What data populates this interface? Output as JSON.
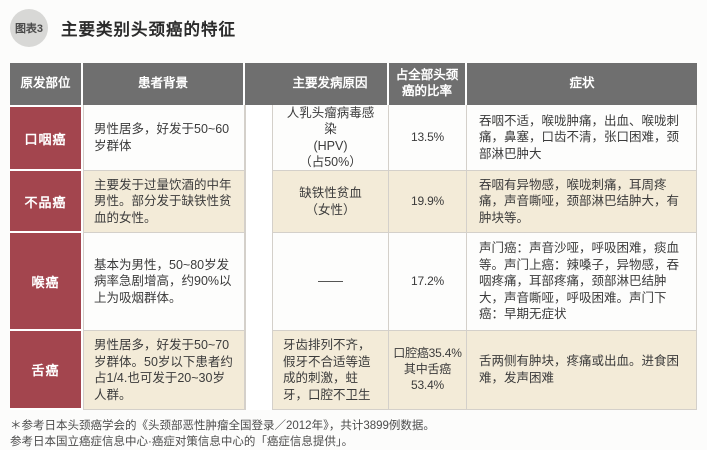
{
  "title": {
    "badge": "图表3",
    "text": "主要类别头颈癌的特征"
  },
  "chart_data": {
    "type": "table",
    "title": "主要类别头颈癌的特征",
    "columns": [
      "原发部位",
      "患者背景",
      "主要发病原因",
      "占全部头颈癌的比率",
      "症状"
    ],
    "rows": [
      {
        "site": "口咽癌",
        "background": "男性居多，好发于50~60岁群体",
        "cause": "人乳头瘤病毒感染\n(HPV)\n（占50%）",
        "ratio": "13.5%",
        "symptoms": "吞咽不适，喉咙肿痛，出血、喉咙刺痛，鼻塞，口齿不清，张口困难，颈部淋巴肿大"
      },
      {
        "site": "不品癌",
        "background": "主要发于过量饮酒的中年男性。部分发于缺铁性贫血的女性。",
        "cause": "缺铁性贫血\n（女性）",
        "ratio": "19.9%",
        "symptoms": "吞咽有异物感，喉咙刺痛，耳周疼痛，声音嘶哑，颈部淋巴结肿大，有肿块等。"
      },
      {
        "site": "喉癌",
        "background": "基本为男性，50~80岁发病率急剧增高，约90%以上为吸烟群体。",
        "cause": "——",
        "ratio": "17.2%",
        "symptoms": "声门癌：声音沙哑，呼吸困难，痰血等。声门上癌：辣嗓子，异物感，吞咽疼痛，耳部疼痛，颈部淋巴结肿大，声音嘶哑，呼吸困难。声门下癌：早期无症状"
      },
      {
        "site": "舌癌",
        "background": "男性居多，好发于50~70岁群体。50岁以下患者约占1/4.也可发于20~30岁人群。",
        "cause": "牙齿排列不齐，假牙不合适等造成的刺激，蛀牙，口腔不卫生",
        "ratio": "口腔癌35.4%\n其中舌癌53.4%",
        "symptoms": "舌两侧有肿块，疼痛或出血。进食困难，发声困难"
      }
    ]
  },
  "footnotes": [
    "＊参考日本头颈癌学会的《头颈部恶性肿瘤全国登录／2012年》，共计3899例数据。",
    "参考日本国立癌症信息中心·癌症对策信息中心的「癌症信息提供」。"
  ],
  "colors": {
    "header_bg": "#6F6F6F",
    "site_bg": "#A3454E",
    "stripe_bg": "#F3EBD8",
    "border": "#D4D0CA"
  }
}
